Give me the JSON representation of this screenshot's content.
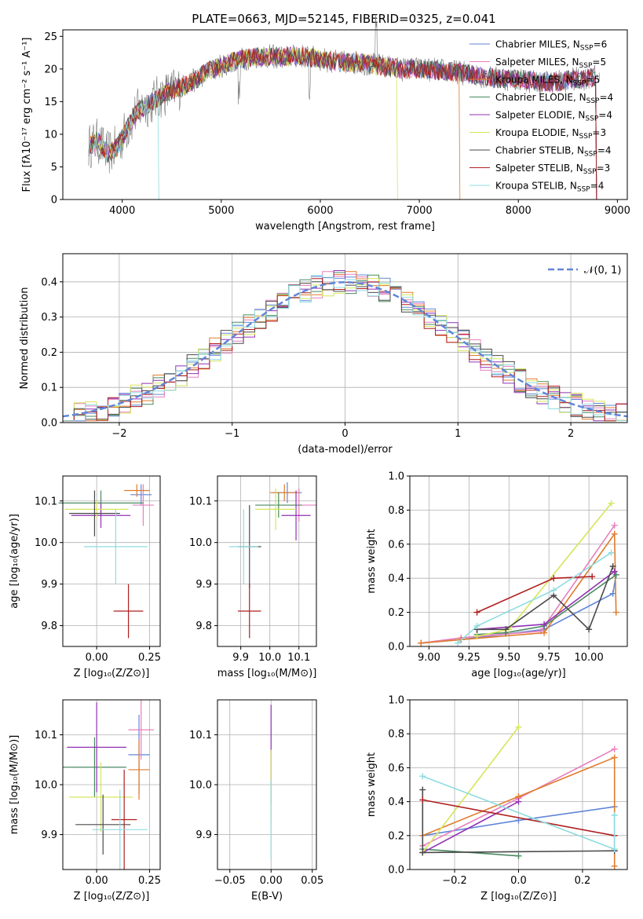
{
  "figure_title": "PLATE=0663, MJD=52145, FIBERID=0325, z=0.041",
  "series": [
    {
      "name": "Chabrier MILES, N",
      "sub": "SSP",
      "suffix": "=6",
      "color": "#6286d8"
    },
    {
      "name": "Salpeter MILES, N",
      "sub": "SSP",
      "suffix": "=5",
      "color": "#e87fbd"
    },
    {
      "name": "Kroupa MILES, N",
      "sub": "SSP",
      "suffix": "=5",
      "color": "#e07b2c"
    },
    {
      "name": "Chabrier ELODIE, N",
      "sub": "SSP",
      "suffix": "=4",
      "color": "#4b8a62"
    },
    {
      "name": "Salpeter ELODIE, N",
      "sub": "SSP",
      "suffix": "=4",
      "color": "#9132b4"
    },
    {
      "name": "Kroupa ELODIE, N",
      "sub": "SSP",
      "suffix": "=3",
      "color": "#d7e55a"
    },
    {
      "name": "Chabrier STELIB, N",
      "sub": "SSP",
      "suffix": "=4",
      "color": "#4a4a4a"
    },
    {
      "name": "Salpeter STELIB, N",
      "sub": "SSP",
      "suffix": "=3",
      "color": "#b01e1e"
    },
    {
      "name": "Kroupa STELIB, N",
      "sub": "SSP",
      "suffix": "=4",
      "color": "#8fdce0"
    }
  ],
  "chart_data": [
    {
      "id": "spectrum",
      "type": "line",
      "xlabel": "wavelength [Angstrom, rest frame]",
      "ylabel": "Flux [fλ10⁻¹⁷ erg cm⁻² s⁻¹ A⁻¹]",
      "xlim": [
        3400,
        9100
      ],
      "ylim": [
        0,
        26
      ],
      "xticks": [
        4000,
        5000,
        6000,
        7000,
        8000,
        9000
      ],
      "yticks": [
        0,
        5,
        10,
        15,
        20,
        25
      ],
      "legend": "top-right",
      "continuum": [
        [
          3650,
          8
        ],
        [
          3750,
          9
        ],
        [
          3850,
          7
        ],
        [
          3950,
          8
        ],
        [
          4050,
          11
        ],
        [
          4150,
          13.5
        ],
        [
          4250,
          14.5
        ],
        [
          4400,
          16
        ],
        [
          4550,
          17
        ],
        [
          4700,
          18
        ],
        [
          4850,
          19.5
        ],
        [
          5000,
          20.5
        ],
        [
          5200,
          21.5
        ],
        [
          5400,
          22
        ],
        [
          5600,
          21.8
        ],
        [
          5800,
          22
        ],
        [
          6000,
          21.5
        ],
        [
          6200,
          21
        ],
        [
          6400,
          21
        ],
        [
          6600,
          20.5
        ],
        [
          6800,
          20
        ],
        [
          7000,
          20
        ],
        [
          7200,
          19.8
        ],
        [
          7400,
          19.5
        ],
        [
          7600,
          19
        ],
        [
          7800,
          18.5
        ],
        [
          8000,
          18.5
        ],
        [
          8200,
          18
        ],
        [
          8400,
          18
        ],
        [
          8600,
          18.5
        ],
        [
          8800,
          18.8
        ]
      ],
      "model_ends": [
        8800,
        8800,
        7420,
        8800,
        8800,
        6790,
        8800,
        8800,
        4380
      ]
    },
    {
      "id": "residuals",
      "type": "histogram",
      "xlabel": "(data-model)/error",
      "ylabel": "Normed distribution",
      "xlim": [
        -2.5,
        2.5
      ],
      "ylim": [
        0,
        0.48
      ],
      "xticks": [
        -2,
        -1,
        0,
        1,
        2
      ],
      "yticks": [
        0.0,
        0.1,
        0.2,
        0.3,
        0.4
      ],
      "grid": true,
      "legend_label": "𝒩(0, 1)",
      "normal_color": "#6286d8",
      "bin_width": 0.1
    },
    {
      "id": "age-vs-z",
      "type": "errorbar",
      "xlabel": "Z [log₁₀(Z/Z⊙)]",
      "ylabel": "age  [log₁₀(age/yr)]",
      "xlim": [
        -0.16,
        0.3
      ],
      "ylim": [
        9.75,
        10.16
      ],
      "xticks": [
        0.0,
        0.1,
        0.2
      ],
      "ytick_labels": [
        "9.8",
        "9.9",
        "10.0",
        "10.1"
      ],
      "xtick_labels": [
        "0.00",
        "0.25"
      ],
      "grid": true,
      "points": [
        {
          "x": 0.21,
          "y": 10.115,
          "xerr": 0.05,
          "yerr": 0.025
        },
        {
          "x": 0.22,
          "y": 10.09,
          "xerr": 0.05,
          "yerr": 0.05
        },
        {
          "x": 0.19,
          "y": 10.125,
          "xerr": 0.06,
          "yerr": 0.015
        },
        {
          "x": 0.02,
          "y": 10.095,
          "xerr": 0.2,
          "yerr": 0.03
        },
        {
          "x": 0.02,
          "y": 10.065,
          "xerr": 0.14,
          "yerr": 0.03
        },
        {
          "x": 0.0,
          "y": 10.08,
          "xerr": 0.15,
          "yerr": 0.02
        },
        {
          "x": -0.01,
          "y": 10.07,
          "xerr": 0.12,
          "yerr": 0.055
        },
        {
          "x": 0.15,
          "y": 9.835,
          "xerr": 0.07,
          "yerr": 0.065
        },
        {
          "x": 0.09,
          "y": 9.99,
          "xerr": 0.15,
          "yerr": 0.09
        }
      ]
    },
    {
      "id": "age-vs-mass",
      "type": "errorbar",
      "xlabel": "mass [log₁₀(M/M⊙)]",
      "ylabel": "",
      "xlim": [
        9.82,
        10.16
      ],
      "ylim": [
        9.75,
        10.16
      ],
      "xtick_labels": [
        "9.9",
        "10.0",
        "10.1"
      ],
      "ytick_labels": [
        "9.8",
        "9.9",
        "10.0",
        "10.1"
      ],
      "grid": true,
      "points": [
        {
          "x": 10.06,
          "y": 10.12,
          "xerr": 0.05,
          "yerr": 0.025
        },
        {
          "x": 10.1,
          "y": 10.09,
          "xerr": 0.06,
          "yerr": 0.04
        },
        {
          "x": 10.05,
          "y": 10.12,
          "xerr": 0.05,
          "yerr": 0.02
        },
        {
          "x": 10.03,
          "y": 10.09,
          "xerr": 0.08,
          "yerr": 0.03
        },
        {
          "x": 10.09,
          "y": 10.065,
          "xerr": 0.05,
          "yerr": 0.06
        },
        {
          "x": 10.02,
          "y": 10.08,
          "xerr": 0.07,
          "yerr": 0.05
        },
        {
          "x": 9.93,
          "y": 9.99,
          "xerr": 0.04,
          "yerr": 0.1
        },
        {
          "x": 9.93,
          "y": 9.835,
          "xerr": 0.04,
          "yerr": 0.065
        },
        {
          "x": 9.91,
          "y": 9.99,
          "xerr": 0.05,
          "yerr": 0.09
        }
      ]
    },
    {
      "id": "mass-weight-vs-age",
      "type": "line",
      "xlabel": "age  [log₁₀(age/yr)]",
      "ylabel": "mass weight",
      "xlim": [
        8.88,
        10.24
      ],
      "ylim": [
        0,
        1.0
      ],
      "xtick_labels": [
        "9.00",
        "9.25",
        "9.50",
        "9.75",
        "10.00"
      ],
      "ytick_labels": [
        "0.0",
        "0.2",
        "0.4",
        "0.6",
        "0.8",
        "1.0"
      ],
      "grid": true,
      "lines": [
        [
          [
            8.95,
            0.02
          ],
          [
            9.2,
            0.04
          ],
          [
            9.72,
            0.1
          ],
          [
            10.15,
            0.31
          ],
          [
            10.17,
            0.42
          ]
        ],
        [
          [
            8.95,
            0.02
          ],
          [
            9.2,
            0.05
          ],
          [
            9.7,
            0.09
          ],
          [
            10.16,
            0.71
          ]
        ],
        [
          [
            8.95,
            0.02
          ],
          [
            9.2,
            0.04
          ],
          [
            9.72,
            0.08
          ],
          [
            10.16,
            0.66
          ],
          [
            10.17,
            0.2
          ]
        ],
        [
          [
            9.3,
            0.07
          ],
          [
            9.48,
            0.08
          ],
          [
            9.72,
            0.12
          ],
          [
            10.17,
            0.42
          ]
        ],
        [
          [
            9.3,
            0.1
          ],
          [
            9.72,
            0.13
          ],
          [
            10.16,
            0.44
          ]
        ],
        [
          [
            9.3,
            0.06
          ],
          [
            9.5,
            0.1
          ],
          [
            10.14,
            0.84
          ]
        ],
        [
          [
            9.3,
            0.1
          ],
          [
            9.48,
            0.1
          ],
          [
            9.78,
            0.3
          ],
          [
            10.0,
            0.1
          ],
          [
            10.15,
            0.47
          ]
        ],
        [
          [
            9.3,
            0.2
          ],
          [
            9.78,
            0.4
          ],
          [
            10.02,
            0.41
          ]
        ],
        [
          [
            9.18,
            0.02
          ],
          [
            9.3,
            0.12
          ],
          [
            9.78,
            0.33
          ],
          [
            10.14,
            0.55
          ]
        ]
      ]
    },
    {
      "id": "mass-vs-z",
      "type": "errorbar",
      "xlabel": "Z [log₁₀(Z/Z⊙)]",
      "ylabel": "mass [log₁₀(M/M⊙)]",
      "xlim": [
        -0.16,
        0.3
      ],
      "ylim": [
        9.83,
        10.17
      ],
      "xtick_labels": [
        "0.00",
        "0.25"
      ],
      "ytick_labels": [
        "9.9",
        "10.0",
        "10.1"
      ],
      "grid": true,
      "points": [
        {
          "x": 0.2,
          "y": 10.06,
          "xerr": 0.05,
          "yerr": 0.08
        },
        {
          "x": 0.21,
          "y": 10.11,
          "xerr": 0.06,
          "yerr": 0.06
        },
        {
          "x": 0.2,
          "y": 10.03,
          "xerr": 0.05,
          "yerr": 0.06
        },
        {
          "x": -0.01,
          "y": 10.035,
          "xerr": 0.15,
          "yerr": 0.06
        },
        {
          "x": 0.0,
          "y": 10.075,
          "xerr": 0.14,
          "yerr": 0.09
        },
        {
          "x": 0.02,
          "y": 9.975,
          "xerr": 0.15,
          "yerr": 0.07
        },
        {
          "x": 0.03,
          "y": 9.92,
          "xerr": 0.13,
          "yerr": 0.06
        },
        {
          "x": 0.13,
          "y": 9.93,
          "xerr": 0.06,
          "yerr": 0.1
        },
        {
          "x": 0.11,
          "y": 9.91,
          "xerr": 0.13,
          "yerr": 0.08
        }
      ]
    },
    {
      "id": "mass-vs-ebv",
      "type": "errorbar",
      "xlabel": "E(B-V)",
      "ylabel": "",
      "xlim": [
        -0.065,
        0.055
      ],
      "ylim": [
        9.83,
        10.17
      ],
      "xtick_labels": [
        "−0.05",
        "0.00",
        "0.05"
      ],
      "ytick_labels": [
        "9.9",
        "10.0",
        "10.1"
      ],
      "grid": true,
      "points": [
        {
          "x": 0.0,
          "y": 10.06,
          "xerr": 0.0,
          "yerr": 0.1
        },
        {
          "x": 0.0,
          "y": 10.0,
          "xerr": 0.0,
          "yerr": 0.07
        },
        {
          "x": 0.0,
          "y": 9.93,
          "xerr": 0.0,
          "yerr": 0.08
        }
      ]
    },
    {
      "id": "mass-weight-vs-z",
      "type": "line",
      "xlabel": "Z [log₁₀(Z/Z⊙)]",
      "ylabel": "mass weight",
      "xlim": [
        -0.34,
        0.34
      ],
      "ylim": [
        0,
        1.0
      ],
      "xtick_labels": [
        "−0.2",
        "0.0",
        "0.2"
      ],
      "ytick_labels": [
        "0.0",
        "0.2",
        "0.4",
        "0.6",
        "0.8",
        "1.0"
      ],
      "grid": true,
      "lines": [
        [
          [
            -0.3,
            0.2
          ],
          [
            0.0,
            0.29
          ],
          [
            0.3,
            0.37
          ]
        ],
        [
          [
            -0.3,
            0.14
          ],
          [
            0.0,
            0.42
          ],
          [
            0.3,
            0.71
          ]
        ],
        [
          [
            -0.3,
            0.2
          ],
          [
            0.0,
            0.43
          ],
          [
            0.3,
            0.66
          ],
          [
            0.3,
            0.02
          ]
        ],
        [
          [
            -0.3,
            0.12
          ],
          [
            0.0,
            0.08
          ]
        ],
        [
          [
            -0.3,
            0.1
          ],
          [
            0.0,
            0.4
          ]
        ],
        [
          [
            -0.3,
            0.1
          ],
          [
            0.0,
            0.84
          ]
        ],
        [
          [
            -0.3,
            0.47
          ],
          [
            -0.3,
            0.1
          ],
          [
            0.3,
            0.11
          ]
        ],
        [
          [
            -0.3,
            0.41
          ],
          [
            0.3,
            0.2
          ]
        ],
        [
          [
            -0.3,
            0.55
          ],
          [
            0.3,
            0.12
          ],
          [
            0.3,
            0.32
          ]
        ]
      ]
    }
  ]
}
